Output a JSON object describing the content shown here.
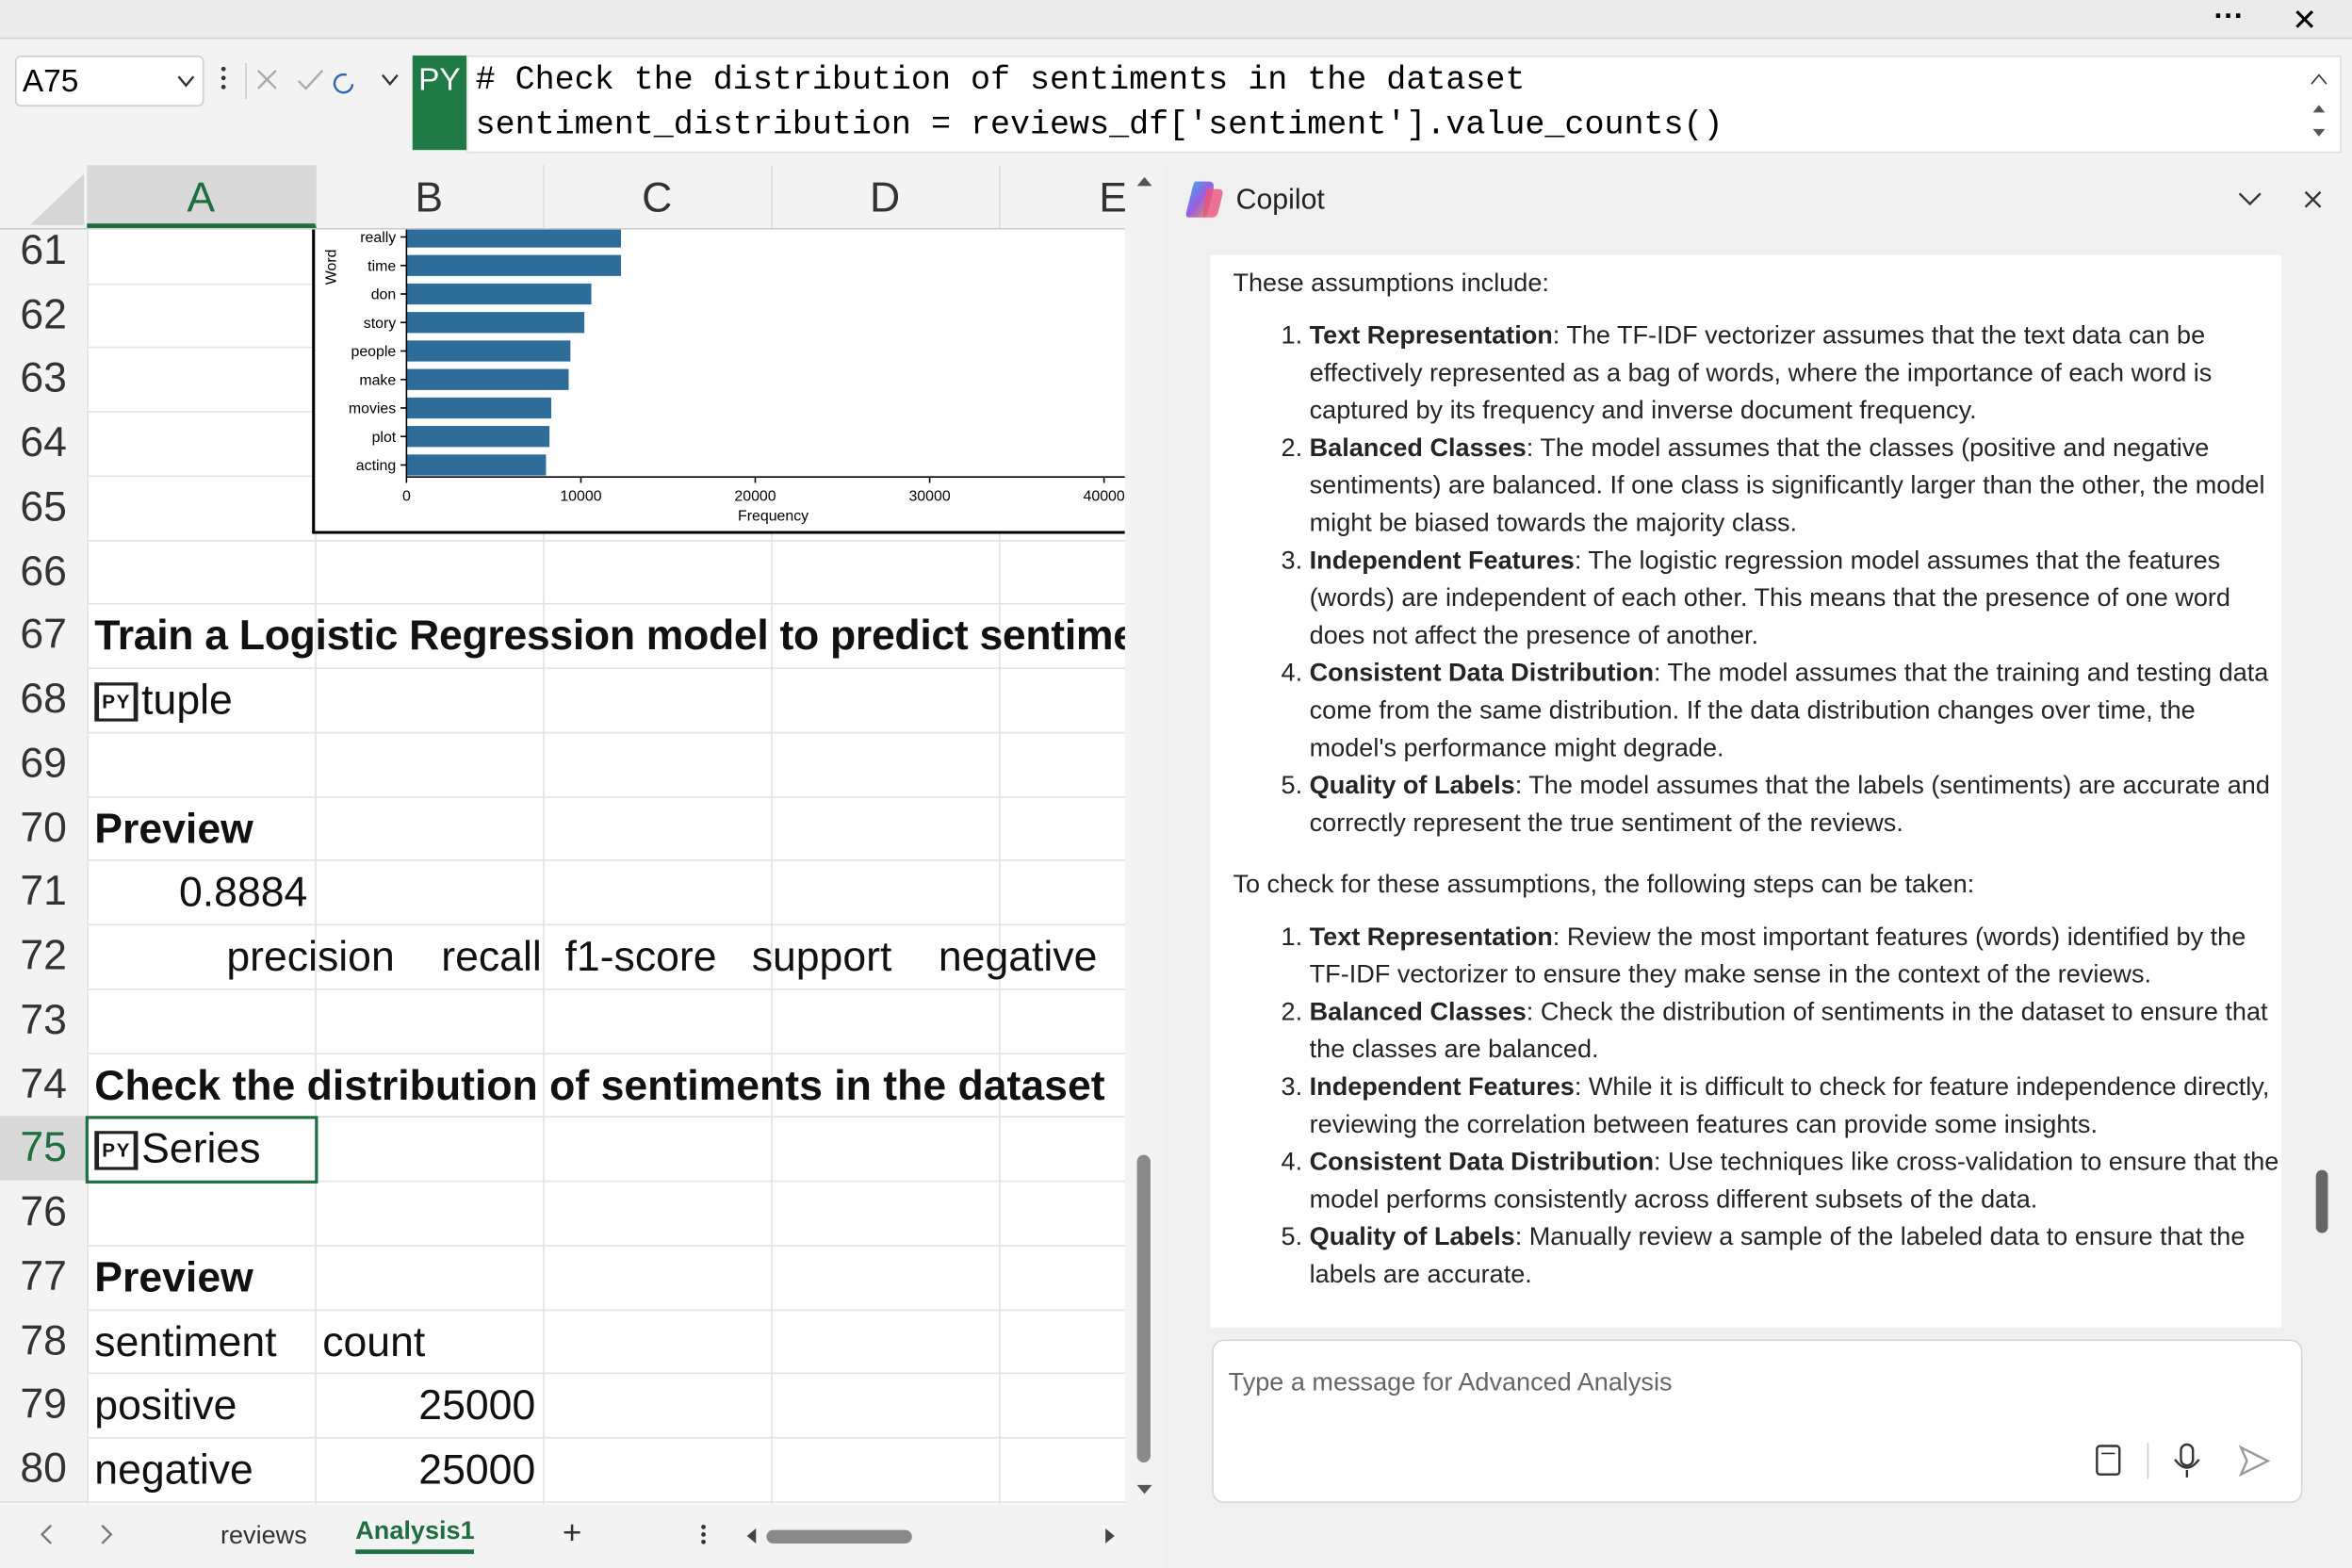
{
  "window": {
    "more": "···",
    "close": "✕"
  },
  "formula_bar": {
    "name_box": "A75",
    "badge": "PY",
    "lines": [
      "# Check the distribution of sentiments in the dataset",
      "sentiment_distribution = reviews_df['sentiment'].value_counts()"
    ]
  },
  "sheet": {
    "columns": [
      "A",
      "B",
      "C",
      "D",
      "E"
    ],
    "row_numbers": [
      61,
      62,
      63,
      64,
      65,
      66,
      67,
      68,
      69,
      70,
      71,
      72,
      73,
      74,
      75,
      76,
      77,
      78,
      79,
      80
    ],
    "cells": {
      "a67": "Train a Logistic Regression model to predict sentiment",
      "py68": "PY",
      "a68": "tuple",
      "a70": "Preview",
      "a71": 0.8884,
      "a72": "precision    recall  f1-score   support    negative",
      "a74": "Check the distribution of sentiments in the dataset",
      "py75": "PY",
      "a75": "Series",
      "a77": "Preview",
      "a78": "sentiment",
      "b78": "count",
      "a79": "positive",
      "b79": 25000,
      "a80": "negative",
      "b80": 25000
    },
    "tabs": [
      "reviews",
      "Analysis1"
    ],
    "add_tab": "+"
  },
  "chart": {
    "type": "bar",
    "orientation": "horizontal",
    "ylabel": "Word",
    "xlabel": "Frequency",
    "categories": [
      "really",
      "time",
      "don",
      "story",
      "people",
      "make",
      "movies",
      "plot",
      "acting"
    ],
    "values": [
      12300,
      12300,
      10600,
      10200,
      9400,
      9300,
      8300,
      8200,
      8000
    ],
    "color": "#2e6c9a",
    "xlim": [
      0,
      41200
    ],
    "xticks": [
      0,
      10000,
      20000,
      30000,
      40000
    ]
  },
  "copilot": {
    "title": "Copilot",
    "intro": "These assumptions include:",
    "assumptions": [
      {
        "term": "Text Representation",
        "text": ": The TF-IDF vectorizer assumes that the text data can be effectively represented as a bag of words, where the importance of each word is captured by its frequency and inverse document frequency."
      },
      {
        "term": "Balanced Classes",
        "text": ": The model assumes that the classes (positive and negative sentiments) are balanced. If one class is significantly larger than the other, the model might be biased towards the majority class."
      },
      {
        "term": "Independent Features",
        "text": ": The logistic regression model assumes that the features (words) are independent of each other. This means that the presence of one word does not affect the presence of another."
      },
      {
        "term": "Consistent Data Distribution",
        "text": ": The model assumes that the training and testing data come from the same distribution. If the data distribution changes over time, the model's performance might degrade."
      },
      {
        "term": "Quality of Labels",
        "text": ": The model assumes that the labels (sentiments) are accurate and correctly represent the true sentiment of the reviews."
      }
    ],
    "steps_intro": "To check for these assumptions, the following steps can be taken:",
    "steps": [
      {
        "term": "Text Representation",
        "text": ": Review the most important features (words) identified by the TF-IDF vectorizer to ensure they make sense in the context of the reviews."
      },
      {
        "term": "Balanced Classes",
        "text": ": Check the distribution of sentiments in the dataset to ensure that the classes are balanced."
      },
      {
        "term": "Independent Features",
        "text": ": While it is difficult to check for feature independence directly, reviewing the correlation between features can provide some insights."
      },
      {
        "term": "Consistent Data Distribution",
        "text": ": Use techniques like cross-validation to ensure that the model performs consistently across different subsets of the data."
      },
      {
        "term": "Quality of Labels",
        "text": ": Manually review a sample of the labeled data to ensure that the labels are accurate."
      }
    ],
    "placeholder": "Type a message for Advanced Analysis"
  }
}
